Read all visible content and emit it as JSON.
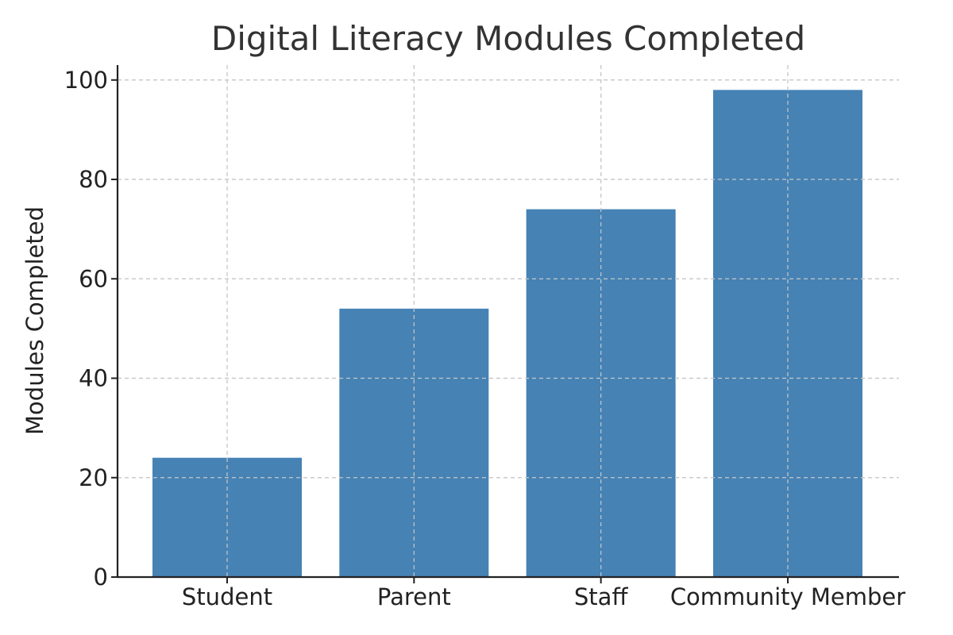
{
  "chart_data": {
    "type": "bar",
    "title": "Digital Literacy Modules Completed",
    "xlabel": "",
    "ylabel": "Modules Completed",
    "categories": [
      "Student",
      "Parent",
      "Staff",
      "Community Member"
    ],
    "values": [
      24,
      54,
      74,
      98
    ],
    "ylim": [
      0,
      103
    ],
    "yticks": [
      0,
      20,
      40,
      60,
      80,
      100
    ],
    "grid": true,
    "bar_color": "#4682b4"
  }
}
